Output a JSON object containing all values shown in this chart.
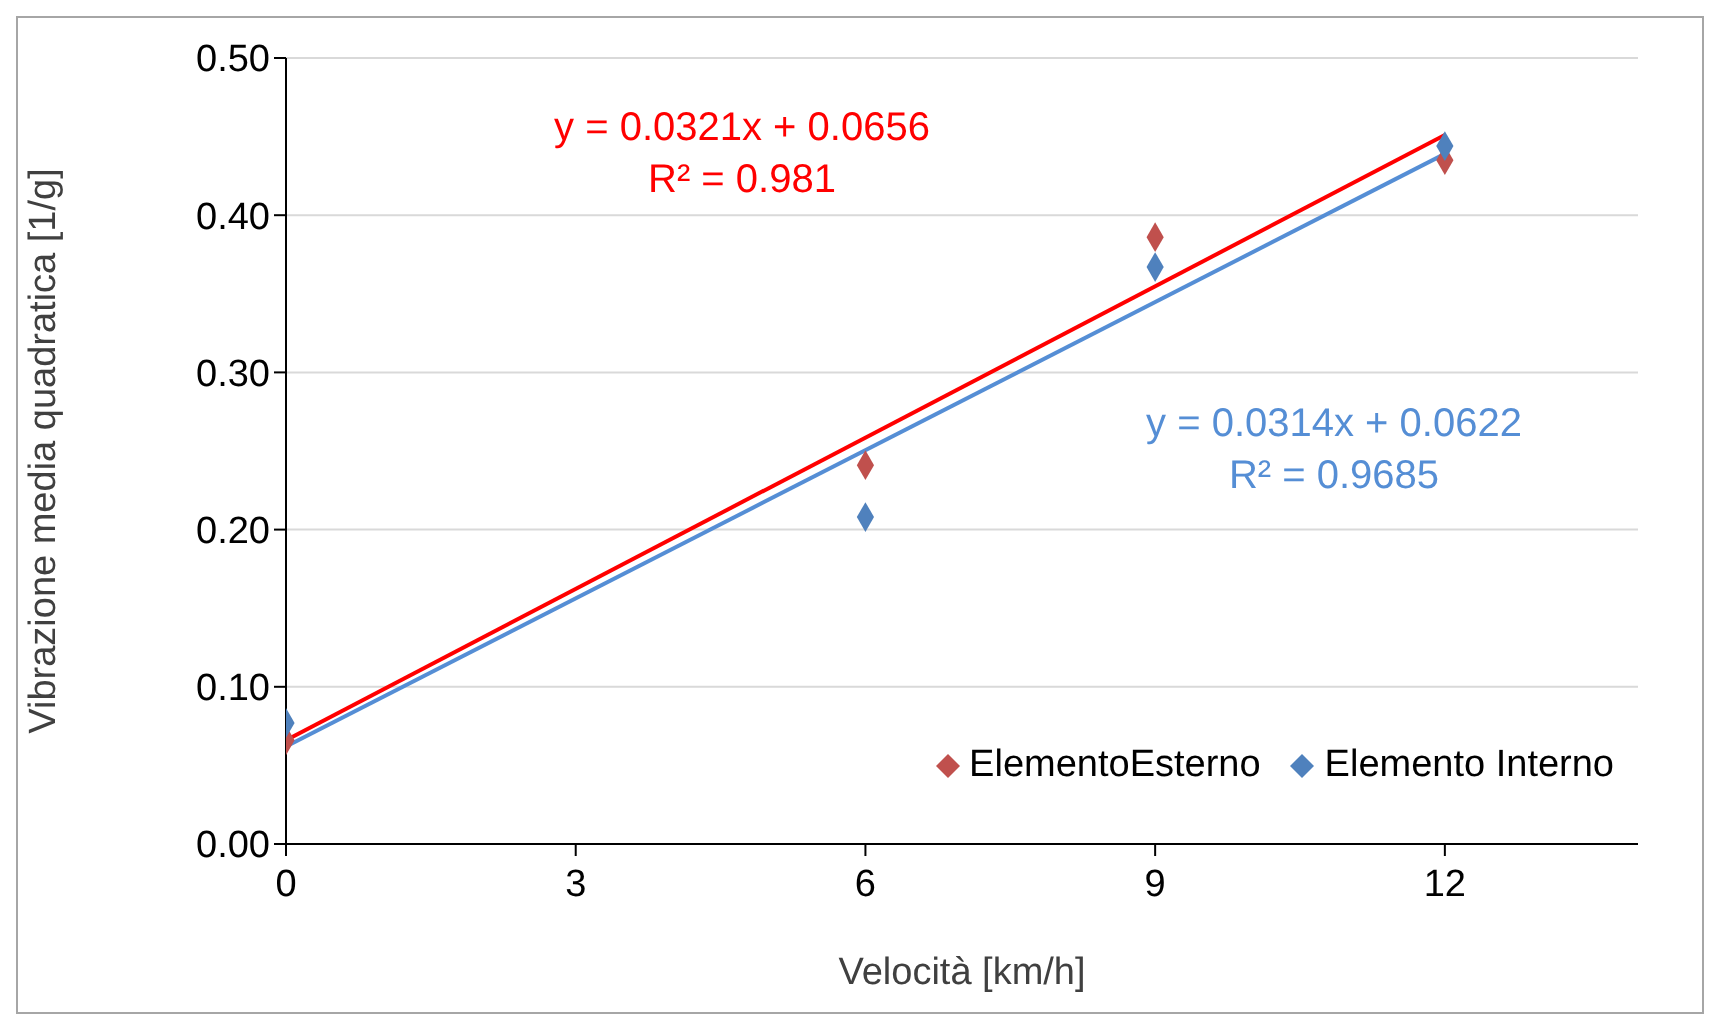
{
  "chart_data": {
    "type": "scatter",
    "xlabel": "Velocità [km/h]",
    "ylabel": "Vibrazione media quadratica [1/g]",
    "xlim": [
      0,
      14
    ],
    "xticks": [
      0,
      3,
      6,
      9,
      12
    ],
    "ylim": [
      0,
      0.5
    ],
    "yticks": [
      {
        "value": 0,
        "label": "0.00"
      },
      {
        "value": 0.1,
        "label": "0.10"
      },
      {
        "value": 0.2,
        "label": "0.20"
      },
      {
        "value": 0.3,
        "label": "0.30"
      },
      {
        "value": 0.4,
        "label": "0.40"
      },
      {
        "value": 0.5,
        "label": "0.50"
      }
    ],
    "grid": "y",
    "legend": "bottom right",
    "marker": "diamond",
    "series": [
      {
        "name": "ElementoEsterno",
        "color": "#c0504d",
        "x": [
          0,
          6,
          9,
          12
        ],
        "values": [
          0.066,
          0.241,
          0.386,
          0.435
        ]
      },
      {
        "name": "Elemento Interno",
        "color": "#4f81bd",
        "x": [
          0,
          6,
          9,
          12
        ],
        "values": [
          0.077,
          0.208,
          0.367,
          0.444
        ]
      },
      {
        "type": "line",
        "color": "#ff0000",
        "marker": "none",
        "x": [
          0,
          12
        ],
        "values": [
          0.066,
          0.451
        ]
      },
      {
        "type": "line",
        "color": "#558ed5",
        "marker": "none",
        "x": [
          0,
          12
        ],
        "values": [
          0.062,
          0.439
        ]
      }
    ],
    "annotations": [
      "y = 0.0321x + 0.0656\nR² = 0.981",
      "y = 0.0314x + 0.0622\nR² = 0.9685"
    ]
  }
}
